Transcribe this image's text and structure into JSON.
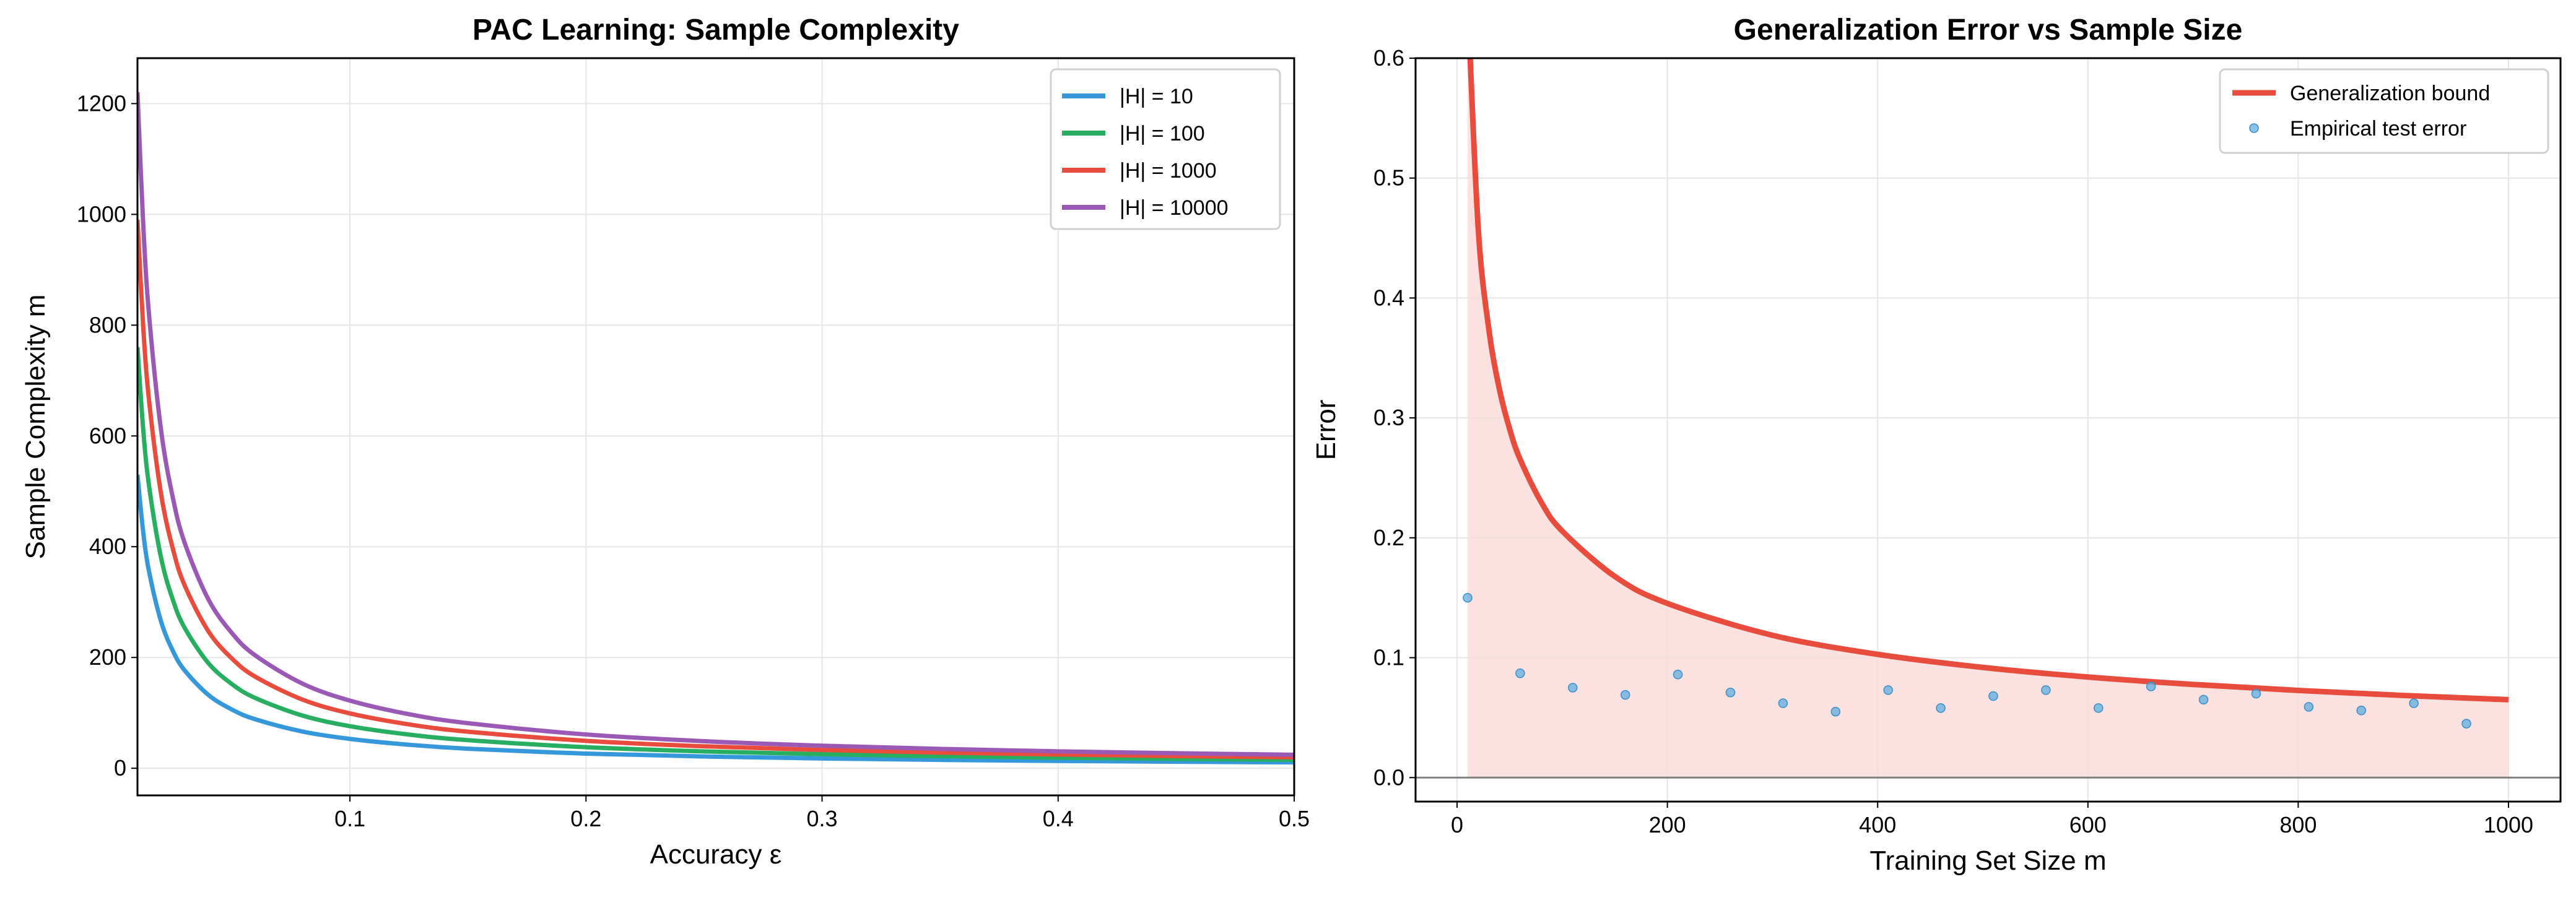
{
  "chart_data": [
    {
      "type": "line",
      "title": "PAC Learning: Sample Complexity",
      "xlabel": "Accuracy ε",
      "ylabel": "Sample Complexity m",
      "xlim": [
        0.01,
        0.5
      ],
      "ylim": [
        -49,
        1282
      ],
      "xticks": [
        0.1,
        0.2,
        0.3,
        0.4,
        0.5
      ],
      "xtick_labels": [
        "0.1",
        "0.2",
        "0.3",
        "0.4",
        "0.5"
      ],
      "yticks": [
        0,
        200,
        400,
        600,
        800,
        1000,
        1200
      ],
      "ytick_labels": [
        "0",
        "200",
        "400",
        "600",
        "800",
        "1000",
        "1200"
      ],
      "grid": true,
      "legend_position": "top-right",
      "x": [
        0.01,
        0.0125,
        0.015,
        0.02,
        0.025,
        0.03,
        0.04,
        0.05,
        0.06,
        0.08,
        0.1,
        0.125,
        0.15,
        0.2,
        0.25,
        0.3,
        0.35,
        0.4,
        0.45,
        0.5
      ],
      "series": [
        {
          "name": "|H| = 10",
          "color": "#3498db",
          "values": [
            529.8,
            423.9,
            353.2,
            264.9,
            211.9,
            176.6,
            132.5,
            106.0,
            88.3,
            66.2,
            53.0,
            42.4,
            35.3,
            26.5,
            21.2,
            17.7,
            15.1,
            13.2,
            11.8,
            10.6
          ]
        },
        {
          "name": "|H| = 100",
          "color": "#27ae60",
          "values": [
            760.1,
            608.1,
            506.7,
            380.0,
            304.0,
            253.4,
            190.0,
            152.0,
            126.7,
            95.0,
            76.0,
            60.8,
            50.7,
            38.0,
            30.4,
            25.3,
            21.7,
            19.0,
            16.9,
            15.2
          ]
        },
        {
          "name": "|H| = 1000",
          "color": "#e74c3c",
          "values": [
            990.4,
            792.3,
            660.2,
            495.2,
            396.1,
            330.1,
            247.6,
            198.1,
            165.1,
            123.8,
            99.0,
            79.2,
            66.0,
            49.5,
            39.6,
            33.0,
            28.3,
            24.8,
            22.0,
            19.8
          ]
        },
        {
          "name": "|H| = 10000",
          "color": "#9b59b6",
          "values": [
            1220.6,
            976.5,
            813.7,
            610.3,
            488.2,
            406.9,
            305.2,
            244.1,
            203.4,
            152.6,
            122.1,
            97.6,
            81.4,
            61.0,
            48.8,
            40.7,
            34.9,
            30.5,
            27.1,
            24.4
          ]
        }
      ]
    },
    {
      "type": "line+scatter",
      "title": "Generalization Error vs Sample Size",
      "xlabel": "Training Set Size m",
      "ylabel": "Error",
      "xlim": [
        -39.5,
        1049.5
      ],
      "ylim": [
        -0.02,
        0.6
      ],
      "xticks": [
        0,
        200,
        400,
        600,
        800,
        1000
      ],
      "xtick_labels": [
        "0",
        "200",
        "400",
        "600",
        "800",
        "1000"
      ],
      "yticks": [
        0.0,
        0.1,
        0.2,
        0.3,
        0.4,
        0.5,
        0.6
      ],
      "ytick_labels": [
        "0.0",
        "0.1",
        "0.2",
        "0.3",
        "0.4",
        "0.5",
        "0.6"
      ],
      "grid": true,
      "legend_position": "top-right",
      "bound": {
        "name": "Generalization bound",
        "color": "#e74c3c",
        "fill_color": "#fadbd8",
        "x": [
          10,
          20,
          30,
          40,
          50,
          60,
          80,
          100,
          150,
          200,
          300,
          400,
          500,
          600,
          700,
          800,
          900,
          1000
        ],
        "y": [
          0.65,
          0.4596,
          0.3753,
          0.325,
          0.2907,
          0.2654,
          0.2298,
          0.2056,
          0.1678,
          0.1453,
          0.1187,
          0.1028,
          0.0919,
          0.0839,
          0.0777,
          0.0727,
          0.0685,
          0.065
        ]
      },
      "empirical": {
        "name": "Empirical test error",
        "color": "#5dade2",
        "x": [
          10,
          60,
          110,
          160,
          210,
          260,
          310,
          360,
          410,
          460,
          510,
          560,
          610,
          660,
          710,
          760,
          810,
          860,
          910,
          960
        ],
        "y": [
          0.15,
          0.087,
          0.075,
          0.069,
          0.086,
          0.071,
          0.062,
          0.055,
          0.073,
          0.058,
          0.068,
          0.073,
          0.058,
          0.076,
          0.065,
          0.07,
          0.059,
          0.056,
          0.062,
          0.045
        ]
      }
    }
  ]
}
